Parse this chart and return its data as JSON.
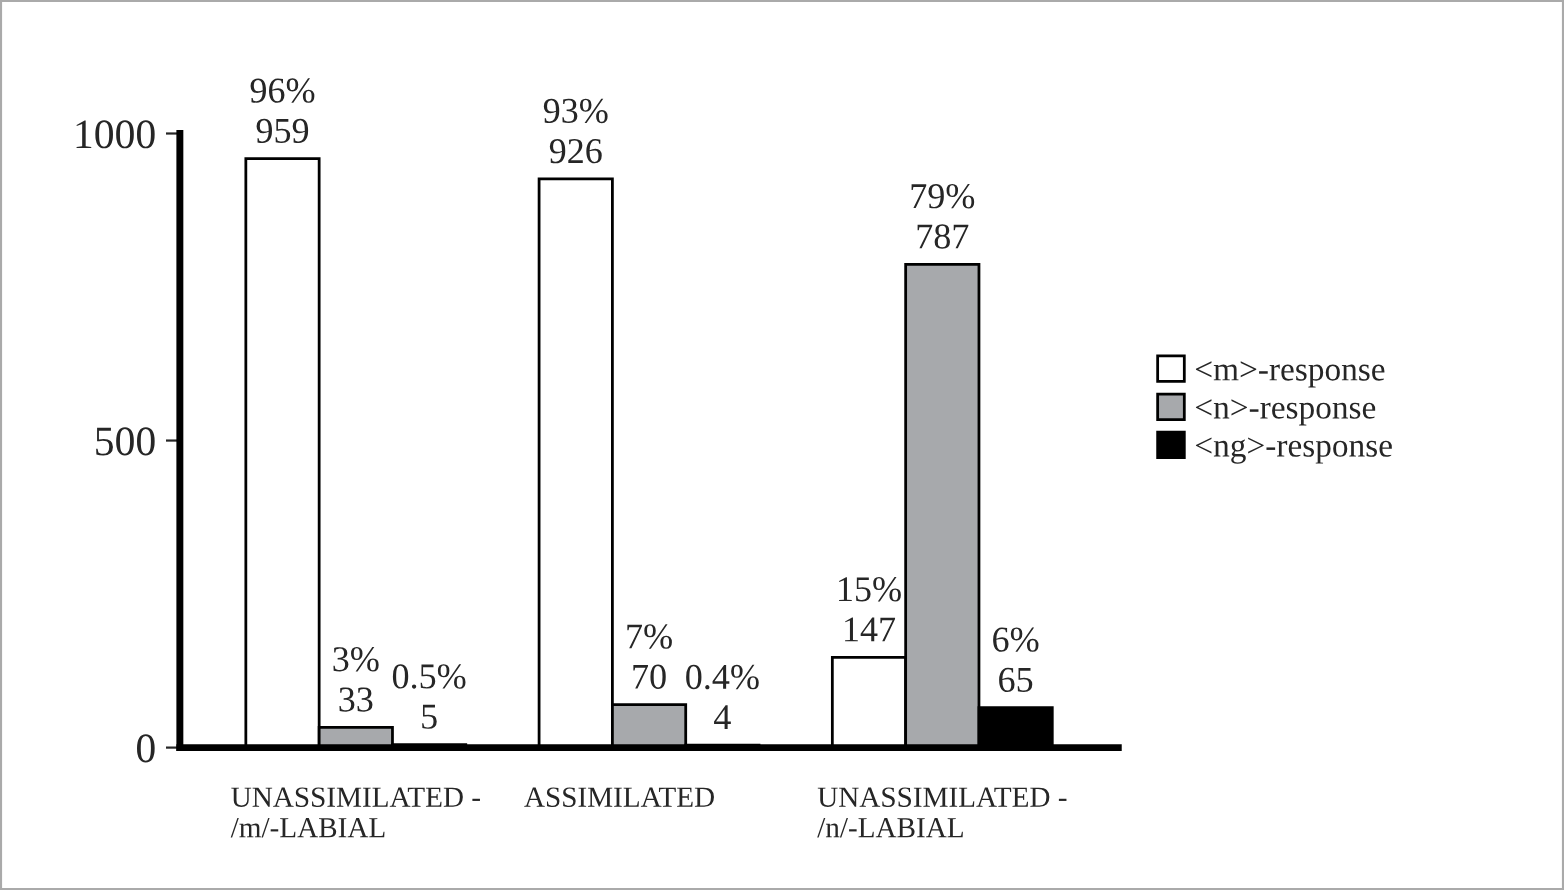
{
  "chart_data": {
    "type": "bar",
    "categories": [
      "UNASSIMILATED -\n/m/-LABIAL",
      "ASSIMILATED",
      "UNASSIMILATED -\n/n/-LABIAL"
    ],
    "series": [
      {
        "name": "<m>-response",
        "color": "#ffffff",
        "values": [
          959,
          926,
          147
        ],
        "value_labels": [
          "96%\n959",
          "93%\n926",
          "15%\n147"
        ]
      },
      {
        "name": "<n>-response",
        "color": "#a7a9ac",
        "values": [
          33,
          70,
          787
        ],
        "value_labels": [
          "3%\n33",
          "7%\n70",
          "79%\n787"
        ]
      },
      {
        "name": "<ng>-response",
        "color": "#000000",
        "values": [
          5,
          4,
          65
        ],
        "value_labels": [
          "0.5%\n5",
          "0.4%\n4",
          "6%\n65"
        ]
      }
    ],
    "ylim": [
      0,
      1000
    ],
    "yticks": [
      0,
      500,
      1000
    ],
    "grid": false,
    "legend": "right"
  }
}
